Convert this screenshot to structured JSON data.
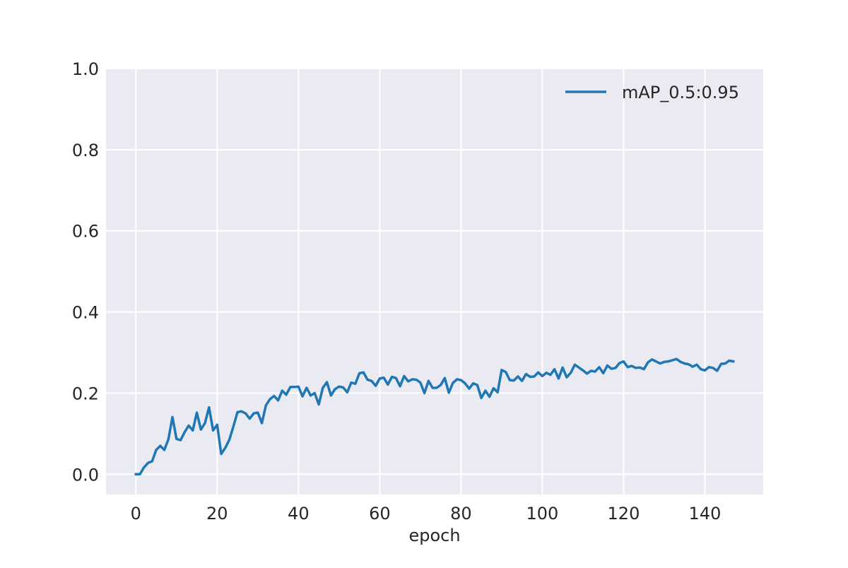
{
  "chart_data": {
    "type": "line",
    "title": "",
    "xlabel": "epoch",
    "ylabel": "",
    "xlim": [
      -7.35,
      154.35
    ],
    "ylim": [
      -0.05,
      1.0
    ],
    "x_ticks": [
      0,
      20,
      40,
      60,
      80,
      100,
      120,
      140
    ],
    "y_ticks": [
      0.0,
      0.2,
      0.4,
      0.6,
      0.8,
      1.0
    ],
    "x_tick_labels": [
      "0",
      "20",
      "40",
      "60",
      "80",
      "100",
      "120",
      "140"
    ],
    "y_tick_labels": [
      "0.0",
      "0.2",
      "0.4",
      "0.6",
      "0.8",
      "1.0"
    ],
    "grid": true,
    "legend_position": "top-right",
    "colors": {
      "series": "#1f77b4",
      "plot_background": "#eaeaf2",
      "grid": "#ffffff"
    },
    "series": [
      {
        "name": "mAP_0.5:0.95",
        "x": [
          0,
          1,
          2,
          3,
          4,
          5,
          6,
          7,
          8,
          9,
          10,
          11,
          12,
          13,
          14,
          15,
          16,
          17,
          18,
          19,
          20,
          21,
          22,
          23,
          24,
          25,
          26,
          27,
          28,
          29,
          30,
          31,
          32,
          33,
          34,
          35,
          36,
          37,
          38,
          39,
          40,
          41,
          42,
          43,
          44,
          45,
          46,
          47,
          48,
          49,
          50,
          51,
          52,
          53,
          54,
          55,
          56,
          57,
          58,
          59,
          60,
          61,
          62,
          63,
          64,
          65,
          66,
          67,
          68,
          69,
          70,
          71,
          72,
          73,
          74,
          75,
          76,
          77,
          78,
          79,
          80,
          81,
          82,
          83,
          84,
          85,
          86,
          87,
          88,
          89,
          90,
          91,
          92,
          93,
          94,
          95,
          96,
          97,
          98,
          99,
          100,
          101,
          102,
          103,
          104,
          105,
          106,
          107,
          108,
          109,
          110,
          111,
          112,
          113,
          114,
          115,
          116,
          117,
          118,
          119,
          120,
          121,
          122,
          123,
          124,
          125,
          126,
          127,
          128,
          129,
          130,
          131,
          132,
          133,
          134,
          135,
          136,
          137,
          138,
          139,
          140,
          141,
          142,
          143,
          144,
          145,
          146,
          147
        ],
        "y": [
          0.0,
          0.0,
          0.017,
          0.028,
          0.032,
          0.06,
          0.07,
          0.06,
          0.086,
          0.141,
          0.087,
          0.084,
          0.104,
          0.12,
          0.108,
          0.152,
          0.11,
          0.126,
          0.165,
          0.108,
          0.122,
          0.05,
          0.065,
          0.085,
          0.118,
          0.153,
          0.155,
          0.15,
          0.137,
          0.15,
          0.152,
          0.126,
          0.17,
          0.185,
          0.193,
          0.182,
          0.206,
          0.196,
          0.215,
          0.215,
          0.216,
          0.192,
          0.213,
          0.194,
          0.2,
          0.172,
          0.213,
          0.227,
          0.194,
          0.21,
          0.216,
          0.214,
          0.202,
          0.226,
          0.223,
          0.249,
          0.251,
          0.233,
          0.23,
          0.218,
          0.236,
          0.238,
          0.221,
          0.24,
          0.237,
          0.217,
          0.242,
          0.229,
          0.234,
          0.233,
          0.226,
          0.2,
          0.23,
          0.213,
          0.213,
          0.22,
          0.237,
          0.201,
          0.225,
          0.234,
          0.232,
          0.224,
          0.211,
          0.224,
          0.22,
          0.188,
          0.206,
          0.191,
          0.212,
          0.202,
          0.257,
          0.252,
          0.232,
          0.231,
          0.241,
          0.23,
          0.247,
          0.24,
          0.241,
          0.251,
          0.242,
          0.25,
          0.245,
          0.259,
          0.236,
          0.263,
          0.239,
          0.25,
          0.27,
          0.263,
          0.256,
          0.248,
          0.255,
          0.253,
          0.264,
          0.249,
          0.268,
          0.26,
          0.262,
          0.274,
          0.278,
          0.264,
          0.267,
          0.262,
          0.263,
          0.259,
          0.276,
          0.283,
          0.278,
          0.273,
          0.277,
          0.278,
          0.281,
          0.284,
          0.277,
          0.273,
          0.271,
          0.265,
          0.27,
          0.259,
          0.256,
          0.264,
          0.262,
          0.255,
          0.272,
          0.273,
          0.28,
          0.278
        ]
      }
    ]
  }
}
